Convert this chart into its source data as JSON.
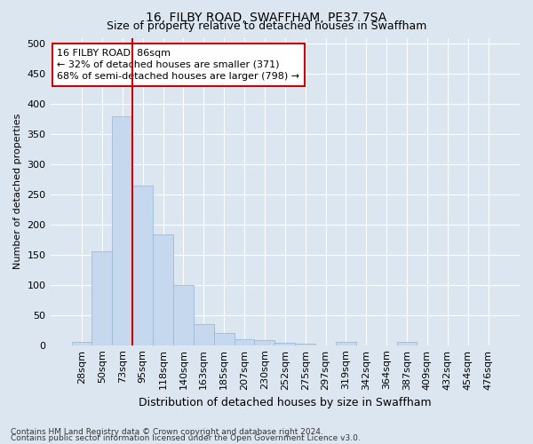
{
  "title": "16, FILBY ROAD, SWAFFHAM, PE37 7SA",
  "subtitle": "Size of property relative to detached houses in Swaffham",
  "xlabel": "Distribution of detached houses by size in Swaffham",
  "ylabel": "Number of detached properties",
  "categories": [
    "28sqm",
    "50sqm",
    "73sqm",
    "95sqm",
    "118sqm",
    "140sqm",
    "163sqm",
    "185sqm",
    "207sqm",
    "230sqm",
    "252sqm",
    "275sqm",
    "297sqm",
    "319sqm",
    "342sqm",
    "364sqm",
    "387sqm",
    "409sqm",
    "432sqm",
    "454sqm",
    "476sqm"
  ],
  "values": [
    5,
    155,
    380,
    265,
    183,
    100,
    35,
    20,
    10,
    8,
    4,
    2,
    0,
    5,
    0,
    0,
    5,
    0,
    0,
    0,
    0
  ],
  "bar_color": "#c5d8ee",
  "bar_edge_color": "#9bbad8",
  "property_line_x": 2.5,
  "property_line_color": "#cc0000",
  "annotation_line1": "16 FILBY ROAD: 86sqm",
  "annotation_line2": "← 32% of detached houses are smaller (371)",
  "annotation_line3": "68% of semi-detached houses are larger (798) →",
  "annotation_box_color": "#ffffff",
  "annotation_box_edge_color": "#cc0000",
  "ylim": [
    0,
    510
  ],
  "yticks": [
    0,
    50,
    100,
    150,
    200,
    250,
    300,
    350,
    400,
    450,
    500
  ],
  "footer1": "Contains HM Land Registry data © Crown copyright and database right 2024.",
  "footer2": "Contains public sector information licensed under the Open Government Licence v3.0.",
  "background_color": "#dce6f0",
  "plot_bg_color": "#dce6f0",
  "grid_color": "#ffffff",
  "title_fontsize": 10,
  "subtitle_fontsize": 9,
  "ylabel_fontsize": 8,
  "xlabel_fontsize": 9,
  "tick_fontsize": 8,
  "annotation_fontsize": 8,
  "footer_fontsize": 6.5
}
